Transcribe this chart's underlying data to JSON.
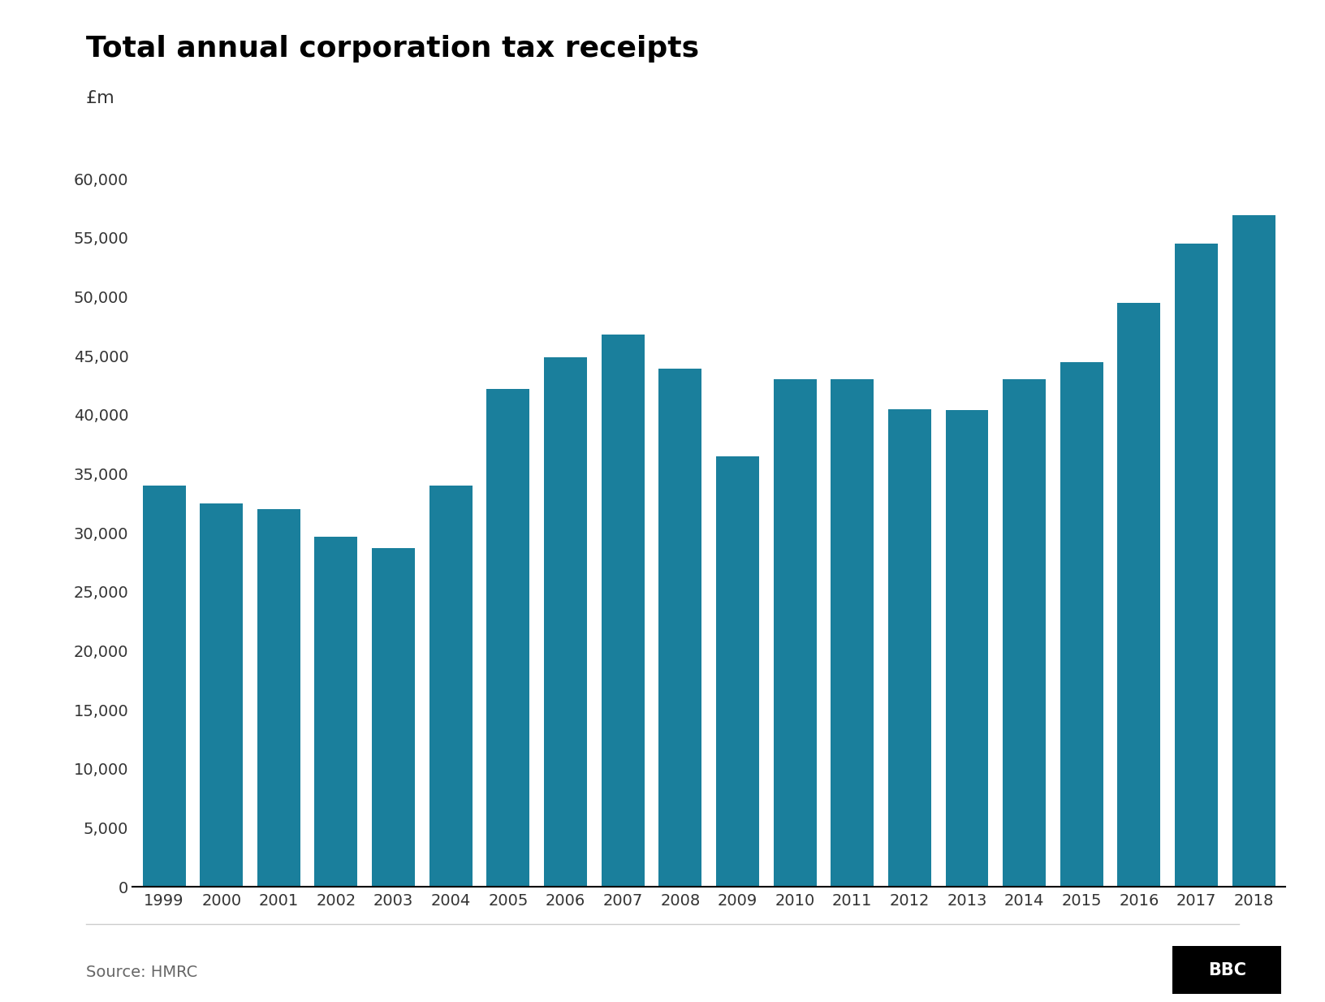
{
  "title": "Total annual corporation tax receipts",
  "ylabel": "£m",
  "years": [
    1999,
    2000,
    2001,
    2002,
    2003,
    2004,
    2005,
    2006,
    2007,
    2008,
    2009,
    2010,
    2011,
    2012,
    2013,
    2014,
    2015,
    2016,
    2017,
    2018
  ],
  "values": [
    34000,
    32500,
    32000,
    29700,
    28700,
    34000,
    42200,
    44900,
    46800,
    43900,
    36500,
    43000,
    43000,
    40500,
    40400,
    43000,
    44500,
    49500,
    54500,
    56900
  ],
  "bar_color": "#1a7f9c",
  "ylim": [
    0,
    62000
  ],
  "yticks": [
    0,
    5000,
    10000,
    15000,
    20000,
    25000,
    30000,
    35000,
    40000,
    45000,
    50000,
    55000,
    60000
  ],
  "source_text": "Source: HMRC",
  "bbc_text": "BBC",
  "title_fontsize": 26,
  "subtitle_fontsize": 16,
  "tick_fontsize": 14,
  "source_fontsize": 14,
  "background_color": "#ffffff",
  "axis_line_color": "#000000",
  "tick_label_color": "#333333",
  "source_color": "#666666"
}
